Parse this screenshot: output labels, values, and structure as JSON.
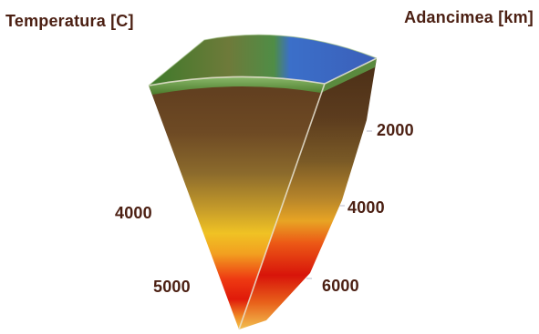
{
  "labels": {
    "left_title": "Temperatura [C]",
    "right_title": "Adancimea [km]"
  },
  "temperatures": [
    {
      "value": "4000"
    },
    {
      "value": "5000"
    }
  ],
  "depths": [
    {
      "value": "2000"
    },
    {
      "value": "4000"
    },
    {
      "value": "6000"
    }
  ],
  "colors": {
    "text": "#4b1f12",
    "crust_green": "#3a8a3a",
    "ocean_blue": "#3b6fc9",
    "mantle_brown": "#5b3a1c",
    "outer_core_yellow": "#f2c12a",
    "inner_core_red": "#e11d0d"
  }
}
